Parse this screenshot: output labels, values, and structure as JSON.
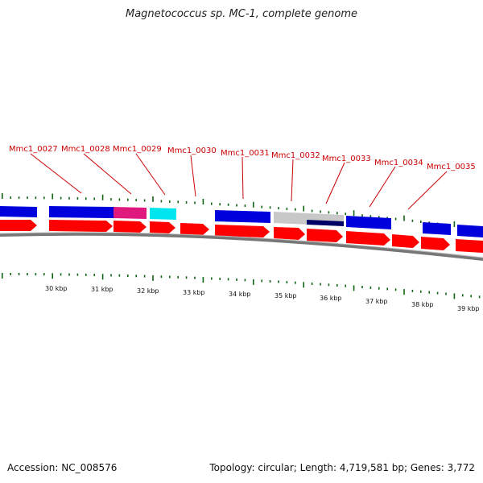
{
  "title": "Magnetococcus sp. MC-1, complete genome",
  "accession": "Accession: NC_008576",
  "summary": "Topology: circular; Length: 4,719,581 bp; Genes: 3,772",
  "gene_labels": [
    "Mmc1_0027",
    "Mmc1_0028",
    "Mmc1_0029",
    "Mmc1_0030",
    "Mmc1_0031",
    "Mmc1_0032",
    "Mmc1_0033",
    "Mmc1_0034",
    "Mmc1_0035"
  ],
  "kbp_labels": [
    "30 kbp",
    "31 kbp",
    "32 kbp",
    "33 kbp",
    "34 kbp",
    "35 kbp",
    "36 kbp",
    "37 kbp",
    "38 kbp",
    "39 kbp"
  ],
  "colors": {
    "cds_forward": "#ff0000",
    "cog_blue": "#0000dd",
    "cog_magenta": "#e0197f",
    "cog_cyan": "#00e5ee",
    "cog_grey": "#c8c8c8",
    "cog_navy": "#000066",
    "label_red": "#cc0000",
    "tick_green": "#116611",
    "backbone": "#777777"
  }
}
